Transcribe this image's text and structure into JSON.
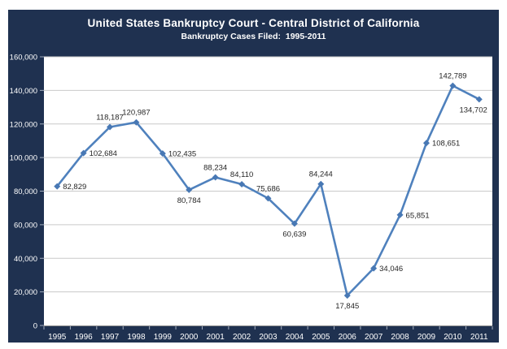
{
  "header": {
    "title": "United States Bankruptcy Court - Central District of California",
    "subtitle": "Bankruptcy Cases Filed:  1995-2011"
  },
  "chart_data": {
    "type": "line",
    "title": "United States Bankruptcy Court - Central District of California",
    "subtitle": "Bankruptcy Cases Filed:  1995-2011",
    "categories": [
      "1995",
      "1996",
      "1997",
      "1998",
      "1999",
      "2000",
      "2001",
      "2002",
      "2003",
      "2004",
      "2005",
      "2006",
      "2007",
      "2008",
      "2009",
      "2010",
      "2011"
    ],
    "values": [
      82829,
      102684,
      118187,
      120987,
      102435,
      80784,
      88234,
      84110,
      75686,
      60639,
      84244,
      17845,
      34046,
      65851,
      108651,
      142789,
      134702
    ],
    "value_labels": [
      "82,829",
      "102,684",
      "118,187",
      "120,987",
      "102,435",
      "80,784",
      "88,234",
      "84,110",
      "75,686",
      "60,639",
      "84,244",
      "17,845",
      "34,046",
      "65,851",
      "108,651",
      "142,789",
      "134,702"
    ],
    "label_positions": [
      "right",
      "right",
      "above",
      "above",
      "right",
      "below",
      "above",
      "above",
      "above",
      "below",
      "above",
      "below",
      "right",
      "right",
      "right",
      "above",
      "below-left"
    ],
    "xlabel": "",
    "ylabel": "",
    "ylim": [
      0,
      160000
    ],
    "ytick_interval": 20000,
    "ytick_labels": [
      "0",
      "20,000",
      "40,000",
      "60,000",
      "80,000",
      "100,000",
      "120,000",
      "140,000",
      "160,000"
    ],
    "grid": true,
    "legend": "none",
    "marker": "diamond",
    "colors": {
      "panel_bg": "#1F3150",
      "plot_bg": "#FFFFFF",
      "line": "#4F81BD",
      "marker": "#4878B4",
      "gridline": "#C9C9C9",
      "axis_line": "#8C8C8C",
      "tick": "#B8C2D0",
      "axis_text": "#FFFFFF",
      "data_label": "#262626",
      "title_text": "#FFFFFF"
    }
  }
}
